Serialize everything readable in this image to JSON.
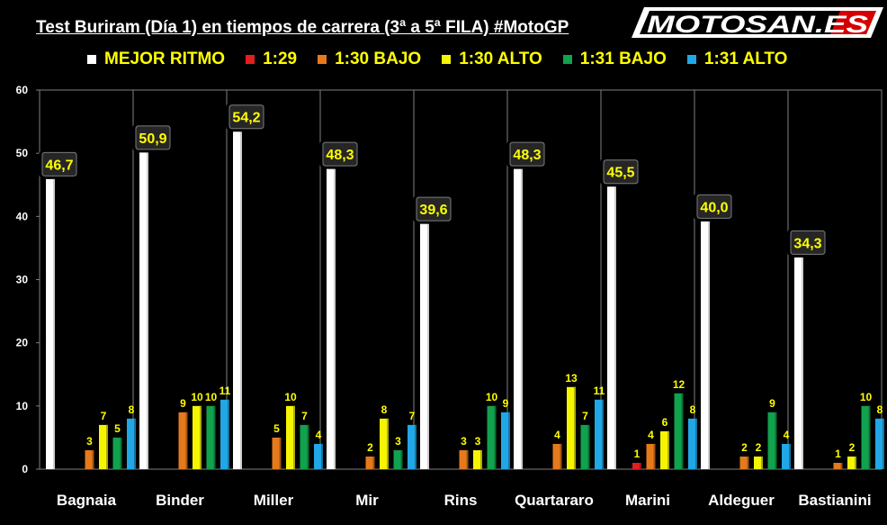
{
  "title": "Test Buriram (Día 1) en tiempos de carrera (3ª a 5ª FILA) #MotoGP",
  "logo_text": "MOTOSAN.ES",
  "colors": {
    "background": "#000000",
    "label_text": "#ffff00",
    "label_box": "#262626"
  },
  "legend": [
    {
      "label": "MEJOR RITMO",
      "color": "#ffffff"
    },
    {
      "label": "1:29",
      "color": "#e31e1e"
    },
    {
      "label": "1:30 BAJO",
      "color": "#e57a1c"
    },
    {
      "label": "1:30 ALTO",
      "color": "#f5f500"
    },
    {
      "label": "1:31 BAJO",
      "color": "#11a24d"
    },
    {
      "label": "1:31 ALTO",
      "color": "#21a7e6"
    }
  ],
  "chart_data": {
    "type": "bar",
    "title": "Test Buriram (Día 1) en tiempos de carrera (3ª a 5ª FILA) #MotoGP",
    "xlabel": "",
    "ylabel": "",
    "ylim": [
      0,
      60
    ],
    "yticks": [
      0,
      10,
      20,
      30,
      40,
      50,
      60
    ],
    "grid": false,
    "legend_position": "top",
    "categories": [
      "Bagnaia",
      "Binder",
      "Miller",
      "Mir",
      "Rins",
      "Quartararo",
      "Marini",
      "Aldeguer",
      "Bastianini"
    ],
    "series": [
      {
        "name": "MEJOR RITMO",
        "color": "#ffffff",
        "values": [
          46.7,
          50.9,
          54.2,
          48.3,
          39.6,
          48.3,
          45.5,
          40.0,
          34.3
        ],
        "labels": [
          "46,7",
          "50,9",
          "54,2",
          "48,3",
          "39,6",
          "48,3",
          "45,5",
          "40,0",
          "34,3"
        ]
      },
      {
        "name": "1:29",
        "color": "#e31e1e",
        "values": [
          0,
          0,
          0,
          0,
          0,
          0,
          1,
          0,
          0
        ]
      },
      {
        "name": "1:30 BAJO",
        "color": "#e57a1c",
        "values": [
          3,
          9,
          5,
          2,
          3,
          4,
          4,
          2,
          1
        ]
      },
      {
        "name": "1:30 ALTO",
        "color": "#f5f500",
        "values": [
          7,
          10,
          10,
          8,
          3,
          13,
          6,
          2,
          2
        ]
      },
      {
        "name": "1:31 BAJO",
        "color": "#11a24d",
        "values": [
          5,
          10,
          7,
          3,
          10,
          7,
          12,
          9,
          10
        ]
      },
      {
        "name": "1:31 ALTO",
        "color": "#21a7e6",
        "values": [
          8,
          11,
          4,
          7,
          9,
          11,
          8,
          4,
          8
        ]
      }
    ]
  }
}
